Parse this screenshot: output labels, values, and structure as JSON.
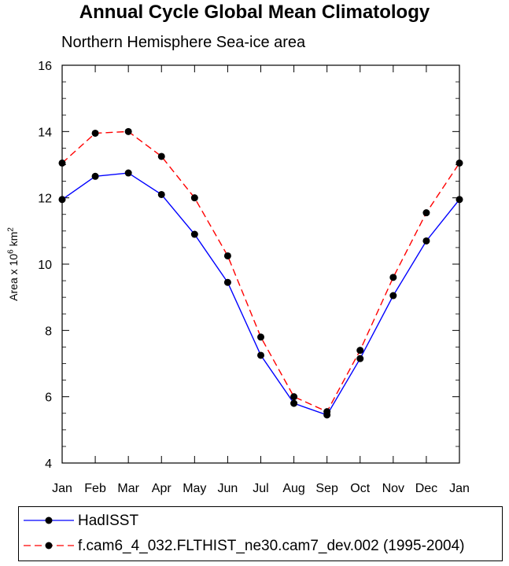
{
  "chart_data": {
    "type": "line",
    "title": "Annual Cycle Global Mean Climatology",
    "subtitle": "Northern Hemisphere Sea-ice area",
    "ylabel": {
      "prefix": "Area x 10",
      "sup1": "6",
      "mid": " km",
      "sup2": "2"
    },
    "xlabel": "",
    "categories": [
      "Jan",
      "Feb",
      "Mar",
      "Apr",
      "May",
      "Jun",
      "Jul",
      "Aug",
      "Sep",
      "Oct",
      "Nov",
      "Dec",
      "Jan"
    ],
    "ylim": [
      4,
      16
    ],
    "yticks": [
      4,
      6,
      8,
      10,
      12,
      14,
      16
    ],
    "grid": false,
    "legend_placement": "below",
    "series": [
      {
        "name": "HadISST",
        "color": "#0000ff",
        "dash": "solid",
        "values": [
          11.95,
          12.65,
          12.75,
          12.1,
          10.9,
          9.45,
          7.25,
          5.8,
          5.45,
          7.15,
          9.05,
          10.7,
          11.95
        ]
      },
      {
        "name": "f.cam6_4_032.FLTHIST_ne30.cam7_dev.002 (1995-2004)",
        "color": "#ff0000",
        "dash": "dashed",
        "values": [
          13.05,
          13.95,
          14.0,
          13.25,
          12.0,
          10.25,
          7.8,
          6.0,
          5.55,
          7.4,
          9.6,
          11.55,
          13.05
        ]
      }
    ]
  }
}
